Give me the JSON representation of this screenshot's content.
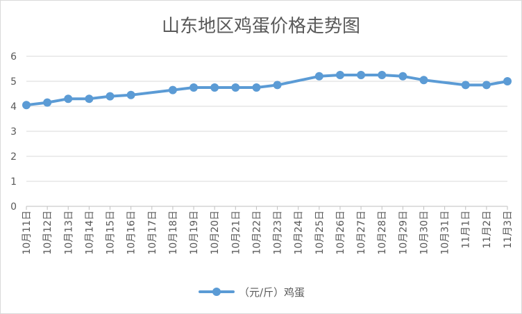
{
  "chart_data": {
    "type": "line",
    "title": "山东地区鸡蛋价格走势图",
    "categories": [
      "10月11日",
      "10月12日",
      "10月13日",
      "10月14日",
      "10月15日",
      "10月16日",
      "10月17日",
      "10月18日",
      "10月19日",
      "10月20日",
      "10月21日",
      "10月22日",
      "10月23日",
      "10月24日",
      "10月25日",
      "10月26日",
      "10月27日",
      "10月28日",
      "10月29日",
      "10月30日",
      "10月31日",
      "11月1日",
      "11月2日",
      "11月3日"
    ],
    "series": [
      {
        "name": "（元/斤）鸡蛋",
        "points": [
          {
            "x": "10月11日",
            "y": 4.05
          },
          {
            "x": "10月12日",
            "y": 4.15
          },
          {
            "x": "10月13日",
            "y": 4.3
          },
          {
            "x": "10月14日",
            "y": 4.3
          },
          {
            "x": "10月15日",
            "y": 4.4
          },
          {
            "x": "10月16日",
            "y": 4.45
          },
          {
            "x": "10月18日",
            "y": 4.65
          },
          {
            "x": "10月19日",
            "y": 4.75
          },
          {
            "x": "10月20日",
            "y": 4.75
          },
          {
            "x": "10月21日",
            "y": 4.75
          },
          {
            "x": "10月22日",
            "y": 4.75
          },
          {
            "x": "10月23日",
            "y": 4.85
          },
          {
            "x": "10月25日",
            "y": 5.2
          },
          {
            "x": "10月26日",
            "y": 5.25
          },
          {
            "x": "10月27日",
            "y": 5.25
          },
          {
            "x": "10月28日",
            "y": 5.25
          },
          {
            "x": "10月29日",
            "y": 5.2
          },
          {
            "x": "10月30日",
            "y": 5.05
          },
          {
            "x": "11月1日",
            "y": 4.85
          },
          {
            "x": "11月2日",
            "y": 4.85
          },
          {
            "x": "11月3日",
            "y": 5.0
          }
        ]
      }
    ],
    "yticks": [
      "0",
      "1",
      "2",
      "3",
      "4",
      "5",
      "6"
    ],
    "ylim": [
      0,
      6
    ],
    "grid": true,
    "legend_position": "bottom",
    "colors": {
      "line": "#5b9bd5",
      "grid": "#d9d9d9",
      "axis": "#bfbfbf",
      "text": "#595959"
    }
  }
}
